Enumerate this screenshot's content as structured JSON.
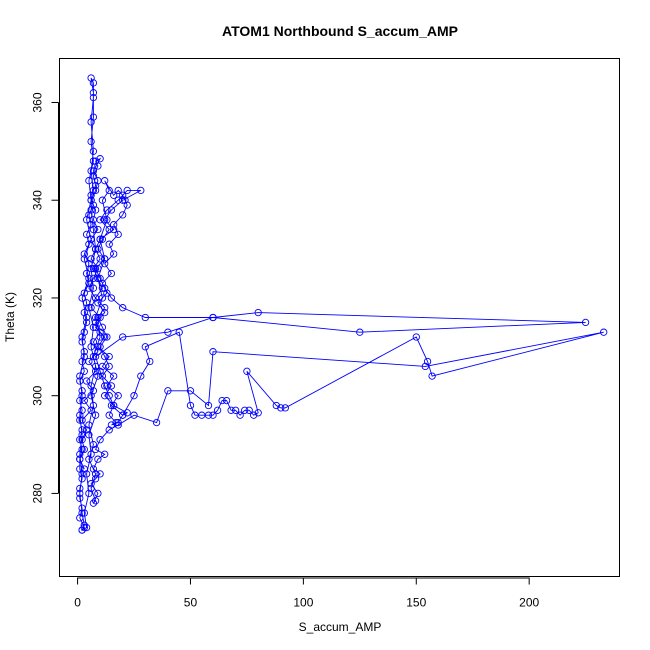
{
  "chart_data": {
    "type": "line",
    "title": "ATOM1 Northbound S_accum_AMP",
    "xlabel": "S_accum_AMP",
    "ylabel": "Theta (K)",
    "xlim": [
      -8,
      240
    ],
    "ylim": [
      263,
      369
    ],
    "xticks": [
      0,
      50,
      100,
      150,
      200
    ],
    "yticks": [
      280,
      300,
      320,
      340,
      360
    ],
    "grid": false,
    "marker": "open-circle",
    "series": [
      {
        "color": "#0000ff",
        "points": [
          [
            2,
            272.5
          ],
          [
            3,
            273
          ],
          [
            1,
            275
          ],
          [
            2,
            277
          ],
          [
            1,
            279
          ],
          [
            1,
            281
          ],
          [
            2,
            283
          ],
          [
            1,
            285
          ],
          [
            1,
            287
          ],
          [
            2,
            289
          ],
          [
            1,
            291
          ],
          [
            2,
            293
          ],
          [
            1,
            295
          ],
          [
            2,
            297
          ],
          [
            1,
            299
          ],
          [
            2,
            301
          ],
          [
            1,
            303
          ],
          [
            3,
            305
          ],
          [
            2,
            307
          ],
          [
            3,
            309
          ],
          [
            2,
            311
          ],
          [
            3,
            313
          ],
          [
            4,
            315
          ],
          [
            3,
            317
          ],
          [
            4,
            319
          ],
          [
            3,
            321
          ],
          [
            5,
            323
          ],
          [
            4,
            325
          ],
          [
            5,
            327
          ],
          [
            3,
            329
          ],
          [
            5,
            331
          ],
          [
            4,
            333
          ],
          [
            6,
            335
          ],
          [
            5,
            337
          ],
          [
            7,
            339
          ],
          [
            6,
            341
          ],
          [
            8,
            343
          ],
          [
            7,
            345
          ],
          [
            9,
            347
          ],
          [
            8,
            348
          ],
          [
            10,
            348.5
          ],
          [
            7,
            346
          ],
          [
            9,
            344
          ],
          [
            8,
            342
          ],
          [
            6,
            340
          ],
          [
            8,
            338
          ],
          [
            7,
            336
          ],
          [
            9,
            334
          ],
          [
            6,
            332
          ],
          [
            8,
            330
          ],
          [
            10,
            328
          ],
          [
            7,
            326
          ],
          [
            9,
            324
          ],
          [
            11,
            322
          ],
          [
            8,
            320
          ],
          [
            12,
            318
          ],
          [
            9,
            316
          ],
          [
            11,
            314
          ],
          [
            13,
            312
          ],
          [
            10,
            310
          ],
          [
            12,
            308
          ],
          [
            14,
            306
          ],
          [
            11,
            304
          ],
          [
            15,
            302
          ],
          [
            12,
            300
          ],
          [
            16,
            298
          ],
          [
            14,
            296
          ],
          [
            17,
            294.5
          ],
          [
            15,
            294
          ],
          [
            18,
            294.5
          ],
          [
            20,
            296
          ],
          [
            22,
            296.5
          ],
          [
            16,
            298
          ],
          [
            14,
            300
          ],
          [
            12,
            302
          ],
          [
            10,
            305
          ],
          [
            8,
            308
          ],
          [
            20,
            312
          ],
          [
            40,
            313
          ],
          [
            60,
            316
          ],
          [
            125,
            313
          ],
          [
            225,
            315
          ],
          [
            80,
            317
          ],
          [
            60,
            316
          ],
          [
            30,
            316
          ],
          [
            20,
            318
          ],
          [
            15,
            320
          ],
          [
            12,
            322
          ],
          [
            10,
            324
          ],
          [
            8,
            326
          ],
          [
            12,
            328
          ],
          [
            9,
            330
          ],
          [
            11,
            332
          ],
          [
            14,
            334
          ],
          [
            10,
            336
          ],
          [
            13,
            338
          ],
          [
            18,
            340
          ],
          [
            22,
            342
          ],
          [
            28,
            342
          ],
          [
            20,
            340
          ],
          [
            15,
            338
          ],
          [
            12,
            336
          ],
          [
            16,
            334
          ],
          [
            10,
            332
          ],
          [
            8,
            330
          ],
          [
            6,
            328
          ],
          [
            9,
            326
          ],
          [
            7,
            324
          ],
          [
            5,
            322
          ],
          [
            8,
            320
          ],
          [
            6,
            318
          ],
          [
            10,
            316
          ],
          [
            8,
            314
          ],
          [
            12,
            312
          ],
          [
            9,
            310
          ],
          [
            14,
            308
          ],
          [
            11,
            306
          ],
          [
            16,
            304
          ],
          [
            13,
            302
          ],
          [
            18,
            300
          ],
          [
            15,
            298
          ],
          [
            20,
            296
          ],
          [
            25,
            300
          ],
          [
            28,
            304
          ],
          [
            32,
            307
          ],
          [
            30,
            310
          ],
          [
            45,
            313
          ],
          [
            50,
            298
          ],
          [
            52,
            296
          ],
          [
            55,
            296
          ],
          [
            58,
            296
          ],
          [
            60,
            296
          ],
          [
            62,
            297
          ],
          [
            64,
            299
          ],
          [
            66,
            299
          ],
          [
            68,
            297
          ],
          [
            70,
            297
          ],
          [
            72,
            296
          ],
          [
            74,
            297
          ],
          [
            76,
            297
          ],
          [
            78,
            296
          ],
          [
            80,
            296.5
          ],
          [
            75,
            305
          ],
          [
            88,
            298
          ],
          [
            90,
            297.5
          ],
          [
            92,
            297.5
          ],
          [
            150,
            312
          ],
          [
            155,
            307
          ],
          [
            157,
            304
          ],
          [
            233,
            313
          ],
          [
            154,
            306
          ],
          [
            60,
            309
          ],
          [
            58,
            298
          ],
          [
            50,
            301
          ],
          [
            40,
            301
          ],
          [
            35,
            294.5
          ],
          [
            25,
            296
          ],
          [
            18,
            294
          ],
          [
            14,
            293
          ],
          [
            10,
            291
          ],
          [
            8,
            289
          ],
          [
            12,
            288
          ],
          [
            9,
            287
          ],
          [
            7,
            285
          ],
          [
            10,
            284
          ],
          [
            8,
            283
          ],
          [
            6,
            282
          ],
          [
            9,
            280
          ],
          [
            7,
            278
          ],
          [
            8,
            278.5
          ],
          [
            6,
            281
          ],
          [
            8,
            284
          ],
          [
            5,
            287
          ],
          [
            7,
            290
          ],
          [
            5,
            294
          ],
          [
            7,
            298
          ],
          [
            6,
            302
          ],
          [
            8,
            306
          ],
          [
            6,
            310
          ],
          [
            7,
            314
          ],
          [
            5,
            318
          ],
          [
            7,
            322
          ],
          [
            6,
            326
          ],
          [
            8,
            330
          ],
          [
            7,
            334
          ],
          [
            6,
            338
          ],
          [
            7,
            342
          ],
          [
            6,
            346
          ],
          [
            7,
            350
          ],
          [
            6,
            356
          ],
          [
            7,
            361
          ],
          [
            7,
            364
          ],
          [
            6,
            365
          ],
          [
            7,
            362
          ],
          [
            7,
            357
          ],
          [
            6,
            352
          ],
          [
            7,
            348
          ],
          [
            5,
            344
          ],
          [
            6,
            340
          ],
          [
            4,
            336
          ],
          [
            6,
            332
          ],
          [
            3,
            328
          ],
          [
            5,
            324
          ],
          [
            2,
            320
          ],
          [
            4,
            316
          ],
          [
            2,
            312
          ],
          [
            3,
            308
          ],
          [
            1,
            304
          ],
          [
            2,
            300
          ],
          [
            1,
            296
          ],
          [
            2,
            292
          ],
          [
            1,
            288
          ],
          [
            2,
            284
          ],
          [
            1,
            280
          ],
          [
            2,
            276
          ],
          [
            3,
            273.5
          ],
          [
            2,
            272.5
          ],
          [
            4,
            273
          ],
          [
            3,
            276
          ],
          [
            5,
            280
          ],
          [
            4,
            284
          ],
          [
            6,
            288
          ],
          [
            5,
            292
          ],
          [
            8,
            296
          ],
          [
            6,
            300
          ],
          [
            9,
            304
          ],
          [
            7,
            308
          ],
          [
            10,
            312
          ],
          [
            8,
            316
          ],
          [
            11,
            320
          ],
          [
            9,
            324
          ],
          [
            12,
            328
          ],
          [
            10,
            332
          ],
          [
            13,
            336
          ],
          [
            11,
            340
          ],
          [
            14,
            342
          ],
          [
            12,
            344
          ],
          [
            16,
            341
          ],
          [
            18,
            342
          ],
          [
            20,
            341
          ],
          [
            21,
            340
          ],
          [
            22,
            339
          ],
          [
            20,
            337
          ],
          [
            16,
            335
          ],
          [
            18,
            333
          ],
          [
            14,
            331
          ],
          [
            16,
            329
          ],
          [
            12,
            327
          ],
          [
            15,
            325
          ],
          [
            11,
            323
          ],
          [
            13,
            321
          ],
          [
            9,
            319
          ],
          [
            12,
            317
          ],
          [
            8,
            315
          ],
          [
            10,
            313
          ],
          [
            7,
            311
          ],
          [
            9,
            309
          ],
          [
            5,
            307
          ],
          [
            8,
            305
          ],
          [
            4,
            303
          ],
          [
            7,
            301
          ],
          [
            3,
            299
          ],
          [
            6,
            297
          ],
          [
            2,
            295
          ],
          [
            4,
            293
          ],
          [
            2,
            291
          ],
          [
            3,
            289
          ],
          [
            1,
            287
          ],
          [
            3,
            285
          ]
        ]
      }
    ]
  }
}
